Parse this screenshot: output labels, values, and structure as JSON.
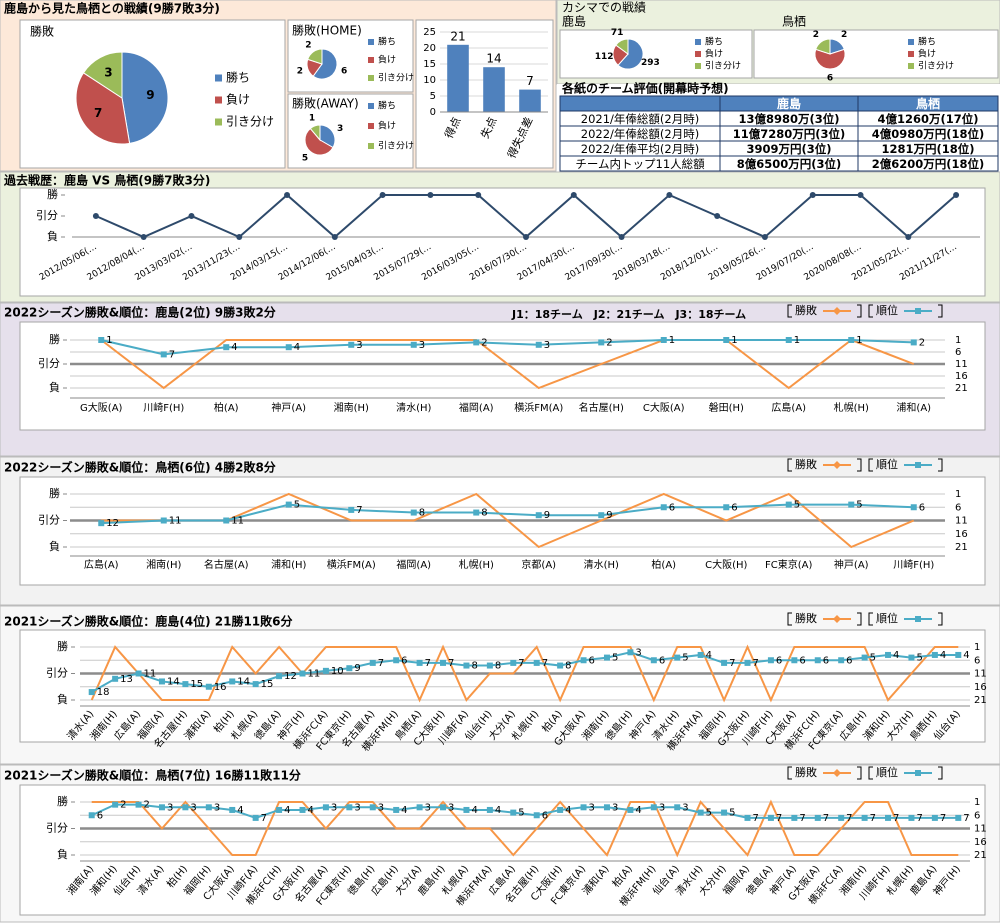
{
  "overview": {
    "title": "鹿島から見た鳥栖との戦績(9勝7敗3分)"
  },
  "kashima_record": {
    "title": "カシマでの戦績"
  },
  "table": {
    "title": "各紙のチーム評価(開幕時予想)",
    "header": [
      "鹿島",
      "鳥栖"
    ],
    "rows": [
      [
        "2021/年俸総額(2月時)",
        "13億8980万(3位)",
        "4億1260万(17位)"
      ],
      [
        "2022/年俸総額(2月時)",
        "11億7280万円(3位)",
        "4億0980万円(18位)"
      ],
      [
        "2022/年俸平均(2月時)",
        "3909万円(3位)",
        "1281万円(18位)"
      ],
      [
        "チーム内トップ11人総額",
        "8億6500万円(3位)",
        "2億6200万円(18位)"
      ]
    ]
  },
  "chart_data": [
    {
      "type": "pie",
      "title": "勝敗",
      "categories": [
        "勝ち",
        "負け",
        "引き分け"
      ],
      "values": [
        9,
        7,
        3
      ],
      "colors": [
        "#4f81bd",
        "#c0504d",
        "#9bbb59"
      ]
    },
    {
      "type": "pie",
      "title": "勝敗(HOME)",
      "categories": [
        "勝ち",
        "負け",
        "引き分け"
      ],
      "values": [
        6,
        2,
        2
      ],
      "colors": [
        "#4f81bd",
        "#c0504d",
        "#9bbb59"
      ]
    },
    {
      "type": "pie",
      "title": "勝敗(AWAY)",
      "categories": [
        "勝ち",
        "負け",
        "引き分け"
      ],
      "values": [
        3,
        5,
        1
      ],
      "colors": [
        "#4f81bd",
        "#c0504d",
        "#9bbb59"
      ]
    },
    {
      "type": "bar",
      "categories": [
        "得点",
        "失点",
        "得失点差"
      ],
      "values": [
        21,
        14,
        7
      ],
      "color": "#4f81bd",
      "ylim": [
        0,
        25
      ],
      "yticks": [
        0,
        5,
        10,
        15,
        20,
        25
      ],
      "grid": true
    },
    {
      "type": "pie",
      "title": "鹿島",
      "categories": [
        "勝ち",
        "負け",
        "引き分け"
      ],
      "values": [
        293,
        112,
        71
      ],
      "colors": [
        "#4f81bd",
        "#c0504d",
        "#9bbb59"
      ]
    },
    {
      "type": "pie",
      "title": "鳥栖",
      "categories": [
        "勝ち",
        "負け",
        "引き分け"
      ],
      "values": [
        2,
        6,
        2
      ],
      "colors": [
        "#4f81bd",
        "#c0504d",
        "#9bbb59"
      ]
    },
    {
      "type": "line",
      "title": "過去戦歴：鹿島 VS 鳥栖(9勝7敗3分)",
      "categories": [
        "2012/05/06(…",
        "2012/08/04(…",
        "2013/03/02(…",
        "2013/11/23(…",
        "2014/03/15(…",
        "2014/12/06(…",
        "2015/04/03(…",
        "2015/07/29(…",
        "2016/03/05(…",
        "2016/07/30(…",
        "2017/04/30(…",
        "2017/09/30(…",
        "2018/03/18(…",
        "2018/12/01(…",
        "2019/05/26(…",
        "2019/07/20(…",
        "2020/08/08(…",
        "2021/05/22(…",
        "2021/11/27(…"
      ],
      "values": [
        1,
        0,
        1,
        0,
        2,
        0,
        2,
        2,
        2,
        0,
        2,
        0,
        2,
        1,
        0,
        2,
        2,
        0,
        2
      ],
      "color": "#2e4a6b",
      "marker": "circle",
      "ylim": [
        0,
        2
      ],
      "yticks": [
        {
          "value": 2,
          "label": "勝"
        },
        {
          "value": 1,
          "label": "引分"
        },
        {
          "value": 0,
          "label": "負"
        }
      ],
      "grid": false
    },
    {
      "type": "line",
      "title": "2022シーズン勝敗&順位：鹿島(2位) 9勝3敗2分",
      "annotation": "J1：18チーム　J2：21チーム　J3：18チーム",
      "categories": [
        "G大阪(A)",
        "川崎F(H)",
        "柏(A)",
        "神戸(A)",
        "湘南(H)",
        "清水(H)",
        "福岡(A)",
        "横浜FM(A)",
        "名古屋(H)",
        "C大阪(A)",
        "磐田(H)",
        "広島(A)",
        "札幌(H)",
        "浦和(A)"
      ],
      "series": [
        {
          "name": "勝敗",
          "color": "#f79646",
          "values": [
            2,
            0,
            2,
            2,
            2,
            2,
            2,
            0,
            1,
            2,
            2,
            0,
            2,
            1
          ]
        },
        {
          "name": "順位",
          "color": "#4bacc6",
          "axis": "y2",
          "marker": "square",
          "data_labels": true,
          "values": [
            1,
            7,
            4,
            4,
            3,
            3,
            2,
            3,
            2,
            1,
            1,
            1,
            1,
            2
          ]
        }
      ],
      "ylim": [
        0,
        2
      ],
      "yticks": [
        {
          "value": 2,
          "label": "勝"
        },
        {
          "value": 1,
          "label": "引分"
        },
        {
          "value": 0,
          "label": "負"
        }
      ],
      "y2lim": [
        21,
        1
      ],
      "y2ticks": [
        1,
        6,
        11,
        16,
        21
      ],
      "grid": true,
      "legend": "top-right"
    },
    {
      "type": "line",
      "title": "2022シーズン勝敗&順位：鳥栖(6位) 4勝2敗8分",
      "categories": [
        "広島(A)",
        "湘南(H)",
        "名古屋(A)",
        "浦和(H)",
        "横浜FM(A)",
        "福岡(A)",
        "札幌(H)",
        "京都(A)",
        "清水(H)",
        "柏(A)",
        "C大阪(H)",
        "FC東京(A)",
        "神戸(A)",
        "川崎F(H)"
      ],
      "series": [
        {
          "name": "勝敗",
          "color": "#f79646",
          "values": [
            1,
            1,
            1,
            2,
            1,
            1,
            2,
            0,
            1,
            2,
            1,
            2,
            0,
            1
          ]
        },
        {
          "name": "順位",
          "color": "#4bacc6",
          "axis": "y2",
          "marker": "square",
          "data_labels": true,
          "values": [
            12,
            11,
            11,
            5,
            7,
            8,
            8,
            9,
            9,
            6,
            6,
            5,
            5,
            6
          ]
        }
      ],
      "ylim": [
        0,
        2
      ],
      "yticks": [
        {
          "value": 2,
          "label": "勝"
        },
        {
          "value": 1,
          "label": "引分"
        },
        {
          "value": 0,
          "label": "負"
        }
      ],
      "y2lim": [
        21,
        1
      ],
      "y2ticks": [
        1,
        6,
        11,
        16,
        21
      ],
      "grid": true,
      "legend": "top-right"
    },
    {
      "type": "line",
      "title": "2021シーズン勝敗&順位：鹿島(4位) 21勝11敗6分",
      "categories": [
        "清水(A)",
        "湘南(H)",
        "広島(A)",
        "福岡(A)",
        "名古屋(H)",
        "浦和(A)",
        "柏(H)",
        "札幌(A)",
        "徳島(A)",
        "神戸(H)",
        "横浜FC(A)",
        "FC東京(H)",
        "名古屋(A)",
        "横浜FM(H)",
        "鳥栖(A)",
        "C大阪(H)",
        "川崎F(A)",
        "仙台(H)",
        "大分(A)",
        "札幌(H)",
        "柏(A)",
        "G大阪(A)",
        "湘南(H)",
        "徳島(H)",
        "神戸(A)",
        "清水(H)",
        "横浜FM(A)",
        "福岡(H)",
        "G大阪(H)",
        "川崎F(H)",
        "C大阪(A)",
        "横浜FC(H)",
        "FC東京(A)",
        "広島(H)",
        "浦和(H)",
        "大分(H)",
        "鳥栖(H)",
        "仙台(A)"
      ],
      "series": [
        {
          "name": "勝敗",
          "color": "#f79646",
          "values": [
            0,
            2,
            1,
            0,
            0,
            0,
            2,
            1,
            2,
            1,
            2,
            2,
            2,
            2,
            0,
            2,
            0,
            1,
            1,
            2,
            0,
            2,
            2,
            2,
            0,
            2,
            2,
            0,
            2,
            0,
            2,
            2,
            2,
            2,
            0,
            1,
            2,
            2
          ]
        },
        {
          "name": "順位",
          "color": "#4bacc6",
          "axis": "y2",
          "marker": "square",
          "data_labels": true,
          "values": [
            18,
            13,
            11,
            14,
            15,
            16,
            14,
            15,
            12,
            11,
            10,
            9,
            7,
            6,
            7,
            7,
            8,
            8,
            7,
            7,
            8,
            6,
            5,
            3,
            6,
            5,
            4,
            7,
            7,
            6,
            6,
            6,
            6,
            5,
            4,
            5,
            4,
            4
          ]
        }
      ],
      "ylim": [
        0,
        2
      ],
      "yticks": [
        {
          "value": 2,
          "label": "勝"
        },
        {
          "value": 1,
          "label": "引分"
        },
        {
          "value": 0,
          "label": "負"
        }
      ],
      "y2lim": [
        21,
        1
      ],
      "y2ticks": [
        1,
        6,
        11,
        16,
        21
      ],
      "grid": true,
      "legend": "top-right"
    },
    {
      "type": "line",
      "title": "2021シーズン勝敗&順位：鳥栖(7位) 16勝11敗11分",
      "categories": [
        "湘南(A)",
        "浦和(H)",
        "仙台(H)",
        "清水(A)",
        "柏(H)",
        "福岡(H)",
        "C大阪(A)",
        "川崎F(A)",
        "横浜FC(H)",
        "G大阪(H)",
        "名古屋(A)",
        "FC東京(H)",
        "徳島(H)",
        "広島(H)",
        "大分(A)",
        "鹿島(H)",
        "札幌(A)",
        "横浜FM(A)",
        "広島(A)",
        "名古屋(H)",
        "C大阪(H)",
        "FC東京(A)",
        "浦和(A)",
        "柏(A)",
        "横浜FM(H)",
        "仙台(A)",
        "清水(H)",
        "大分(H)",
        "福岡(A)",
        "徳島(A)",
        "神戸(A)",
        "G大阪(A)",
        "横浜FC(A)",
        "湘南(H)",
        "川崎F(H)",
        "札幌(H)",
        "鹿島(A)",
        "神戸(H)"
      ],
      "series": [
        {
          "name": "勝敗",
          "color": "#f79646",
          "values": [
            2,
            2,
            2,
            1,
            2,
            1,
            0,
            0,
            2,
            2,
            1,
            2,
            2,
            1,
            1,
            2,
            1,
            1,
            0,
            1,
            2,
            1,
            0,
            2,
            2,
            0,
            2,
            1,
            0,
            2,
            0,
            0,
            1,
            2,
            2,
            0,
            0,
            0
          ]
        },
        {
          "name": "順位",
          "color": "#4bacc6",
          "axis": "y2",
          "marker": "square",
          "data_labels": true,
          "values": [
            6,
            2,
            2,
            3,
            3,
            3,
            4,
            7,
            4,
            4,
            3,
            3,
            3,
            4,
            3,
            3,
            4,
            4,
            5,
            6,
            4,
            3,
            3,
            4,
            3,
            3,
            5,
            5,
            7,
            7,
            7,
            7,
            7,
            7,
            7,
            7,
            7,
            7
          ]
        }
      ],
      "ylim": [
        0,
        2
      ],
      "yticks": [
        {
          "value": 2,
          "label": "勝"
        },
        {
          "value": 1,
          "label": "引分"
        },
        {
          "value": 0,
          "label": "負"
        }
      ],
      "y2lim": [
        21,
        1
      ],
      "y2ticks": [
        1,
        6,
        11,
        16,
        21
      ],
      "grid": true,
      "legend": "top-right"
    }
  ]
}
